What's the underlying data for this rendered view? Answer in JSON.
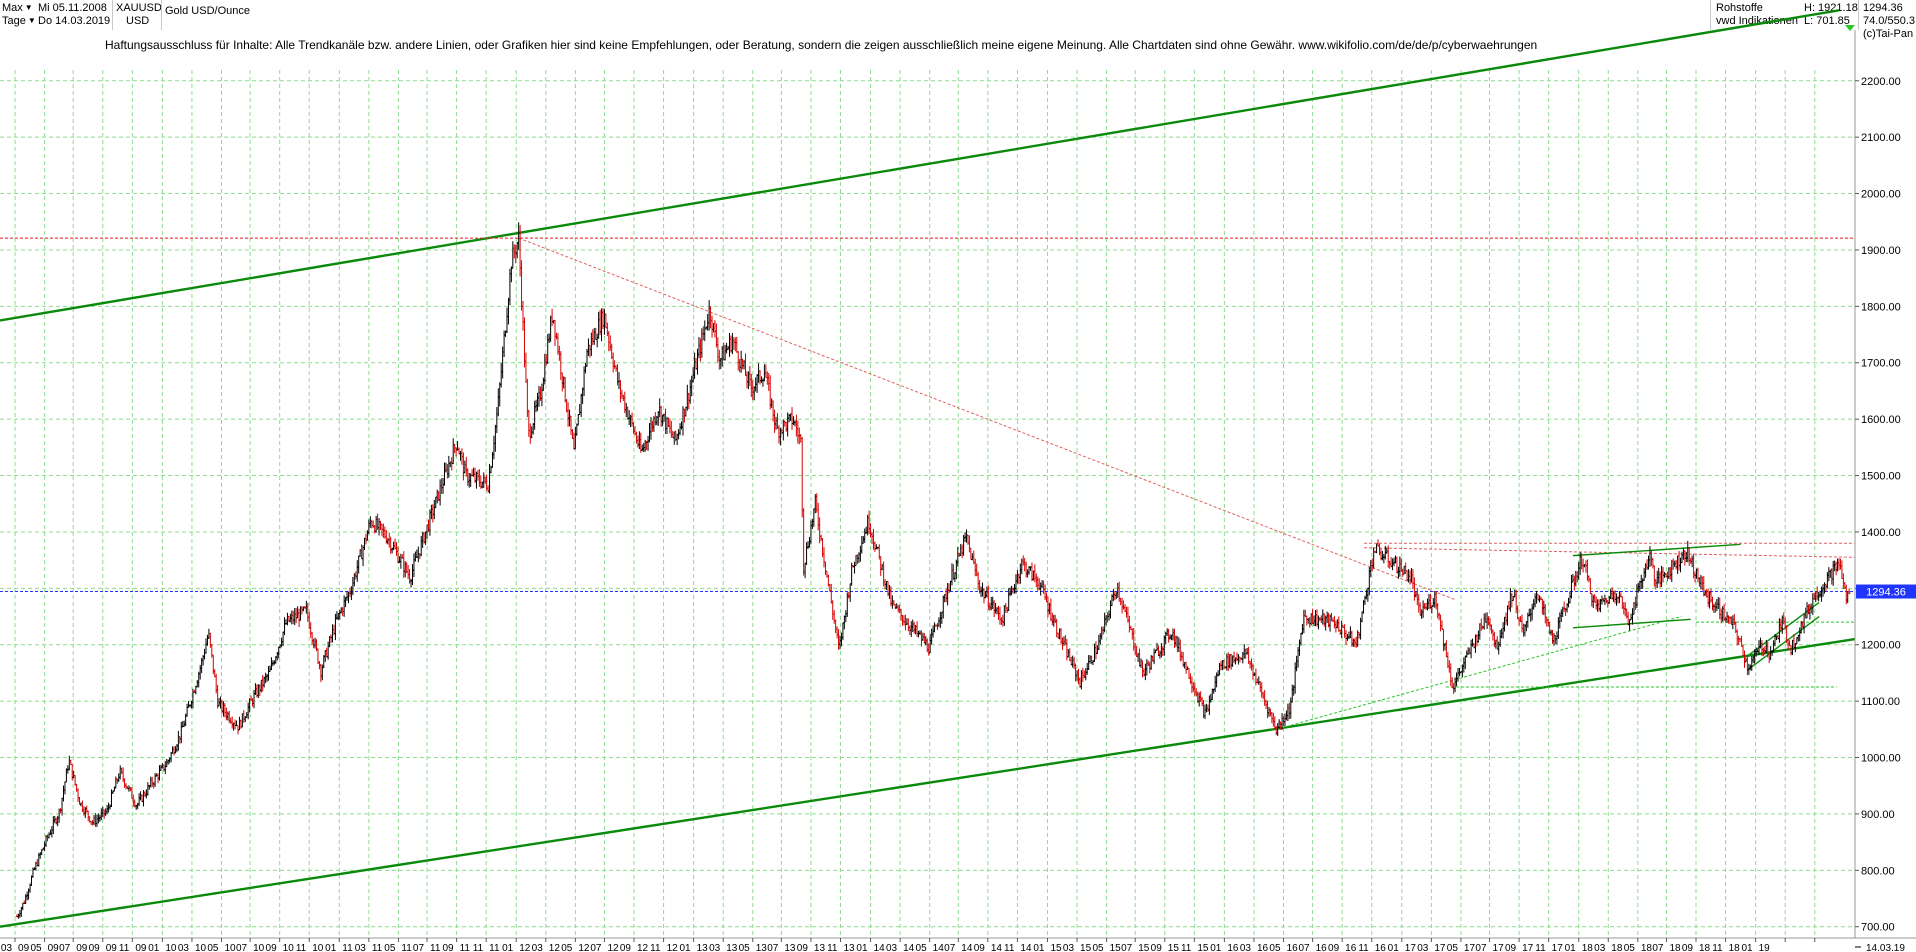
{
  "header": {
    "range_label": "Max",
    "interval_label": "Tage",
    "from_date": "Mi 05.11.2008",
    "to_date": "Do 14.03.2019",
    "symbol": "XAUUSD",
    "currency": "USD",
    "instrument_name": "Gold USD/Ounce",
    "category": "Rohstoffe",
    "source": "vwd Indikationen",
    "high": "H: 1921.18",
    "low": "L: 701.85",
    "last": "1294.36",
    "change": "74.0/550.3",
    "copyright": "(c)Tai-Pan"
  },
  "disclaimer": "Haftungsausschluss für Inhalte: Alle Trendkanäle bzw. andere Linien, oder Grafiken hier sind keine Empfehlungen, oder Beratung, sondern die zeigen ausschließlich meine eigene Meinung. Alle Chartdaten sind ohne Gewähr.  www.wikifolio.com/de/de/p/cyberwaehrungen",
  "chart_data": {
    "type": "ohlc",
    "title": "Gold USD/Ounce",
    "ylim": [
      680,
      2290
    ],
    "y_ticks": [
      700,
      800,
      900,
      1000,
      1100,
      1200,
      1300,
      1400,
      1500,
      1600,
      1700,
      1800,
      1900,
      2000,
      2100,
      2200
    ],
    "y_tick_labels": [
      "700.00",
      "800.00",
      "900.00",
      "1000.00",
      "1100.00",
      "1200.00",
      "1300.00",
      "1400.00",
      "1500.00",
      "1600.00",
      "1700.00",
      "1800.00",
      "1900.00",
      "2000.00",
      "2100.00",
      "2200.00"
    ],
    "x_range": [
      "2008-11-05",
      "2019-03-14"
    ],
    "x_ticks": [
      "2008-11-01",
      "2009-01-01",
      "2009-03-01",
      "2009-05-01",
      "2009-07-01",
      "2009-09-01",
      "2009-11-01",
      "2010-01-01",
      "2010-03-01",
      "2010-05-01",
      "2010-07-01",
      "2010-09-01",
      "2010-11-01",
      "2011-01-01",
      "2011-03-01",
      "2011-05-01",
      "2011-07-01",
      "2011-09-01",
      "2011-11-01",
      "2012-01-01",
      "2012-03-01",
      "2012-05-01",
      "2012-07-01",
      "2012-09-01",
      "2012-11-01",
      "2013-01-01",
      "2013-03-01",
      "2013-05-01",
      "2013-07-01",
      "2013-09-01",
      "2013-11-01",
      "2014-01-01",
      "2014-03-01",
      "2014-05-01",
      "2014-07-01",
      "2014-09-01",
      "2014-11-01",
      "2015-01-01",
      "2015-03-01",
      "2015-05-01",
      "2015-07-01",
      "2015-09-01",
      "2015-11-01",
      "2016-01-01",
      "2016-03-01",
      "2016-05-01",
      "2016-07-01",
      "2016-09-01",
      "2016-11-01",
      "2017-01-01",
      "2017-03-01",
      "2017-05-01",
      "2017-07-01",
      "2017-09-01",
      "2017-11-01",
      "2018-01-01",
      "2018-03-01",
      "2018-05-01",
      "2018-07-01",
      "2018-09-01",
      "2018-11-01",
      "2019-01-01"
    ],
    "x_tick_labels": [
      "03",
      "09",
      "05",
      "09",
      "07",
      "09",
      "09",
      "09",
      "11",
      "09",
      "01",
      "10",
      "03",
      "10",
      "05",
      "10",
      "07",
      "10",
      "09",
      "10",
      "11",
      "10",
      "01",
      "11",
      "03",
      "11",
      "05",
      "11",
      "07",
      "11",
      "09",
      "11",
      "11",
      "11",
      "01",
      "12",
      "03",
      "12",
      "05",
      "12",
      "07",
      "12",
      "09",
      "12",
      "11",
      "12",
      "01",
      "13",
      "03",
      "13",
      "05",
      "13",
      "07",
      "13",
      "09",
      "13",
      "11",
      "13",
      "01",
      "14",
      "03",
      "14",
      "05",
      "14",
      "07",
      "14",
      "09",
      "14",
      "11",
      "14",
      "01",
      "15",
      "03",
      "15",
      "05",
      "15",
      "07",
      "15",
      "09",
      "15",
      "11",
      "15",
      "01",
      "16",
      "03",
      "16",
      "05",
      "16",
      "07",
      "16",
      "09",
      "16",
      "11",
      "16",
      "01",
      "17",
      "03",
      "17",
      "05",
      "17",
      "07",
      "17",
      "09",
      "17",
      "11",
      "17",
      "01",
      "18",
      "03",
      "18",
      "05",
      "18",
      "07",
      "18",
      "09",
      "18",
      "11",
      "18",
      "01",
      "19"
    ],
    "last_date_label": "14.03.19",
    "last_value": 1294.36,
    "last_value_label": "1294.36",
    "grid": true,
    "series": [
      {
        "points": [
          [
            "2008-11-05",
            718
          ],
          [
            "2008-11-20",
            745
          ],
          [
            "2008-12-10",
            800
          ],
          [
            "2009-01-05",
            855
          ],
          [
            "2009-02-01",
            905
          ],
          [
            "2009-02-20",
            995
          ],
          [
            "2009-03-15",
            920
          ],
          [
            "2009-04-10",
            885
          ],
          [
            "2009-05-10",
            905
          ],
          [
            "2009-06-05",
            975
          ],
          [
            "2009-07-10",
            915
          ],
          [
            "2009-08-10",
            955
          ],
          [
            "2009-09-10",
            990
          ],
          [
            "2009-10-10",
            1045
          ],
          [
            "2009-11-20",
            1165
          ],
          [
            "2009-12-05",
            1220
          ],
          [
            "2009-12-25",
            1095
          ],
          [
            "2010-02-05",
            1055
          ],
          [
            "2010-03-10",
            1110
          ],
          [
            "2010-04-10",
            1150
          ],
          [
            "2010-05-15",
            1240
          ],
          [
            "2010-06-25",
            1260
          ],
          [
            "2010-07-25",
            1155
          ],
          [
            "2010-08-25",
            1240
          ],
          [
            "2010-09-25",
            1300
          ],
          [
            "2010-11-05",
            1420
          ],
          [
            "2010-12-10",
            1390
          ],
          [
            "2011-01-25",
            1320
          ],
          [
            "2011-03-10",
            1430
          ],
          [
            "2011-05-01",
            1560
          ],
          [
            "2011-05-20",
            1500
          ],
          [
            "2011-07-05",
            1485
          ],
          [
            "2011-07-25",
            1620
          ],
          [
            "2011-08-22",
            1880
          ],
          [
            "2011-09-06",
            1921
          ],
          [
            "2011-09-26",
            1570
          ],
          [
            "2011-10-20",
            1640
          ],
          [
            "2011-11-15",
            1790
          ],
          [
            "2011-12-29",
            1540
          ],
          [
            "2012-01-25",
            1720
          ],
          [
            "2012-02-29",
            1785
          ],
          [
            "2012-03-30",
            1660
          ],
          [
            "2012-05-16",
            1540
          ],
          [
            "2012-06-20",
            1620
          ],
          [
            "2012-07-25",
            1560
          ],
          [
            "2012-08-20",
            1640
          ],
          [
            "2012-10-04",
            1795
          ],
          [
            "2012-10-25",
            1705
          ],
          [
            "2012-11-20",
            1740
          ],
          [
            "2012-12-28",
            1655
          ],
          [
            "2013-01-25",
            1685
          ],
          [
            "2013-02-20",
            1580
          ],
          [
            "2013-03-25",
            1600
          ],
          [
            "2013-04-10",
            1560
          ],
          [
            "2013-04-16",
            1340
          ],
          [
            "2013-05-10",
            1450
          ],
          [
            "2013-06-28",
            1190
          ],
          [
            "2013-07-25",
            1335
          ],
          [
            "2013-08-28",
            1420
          ],
          [
            "2013-10-15",
            1270
          ],
          [
            "2013-12-31",
            1195
          ],
          [
            "2014-02-15",
            1320
          ],
          [
            "2014-03-17",
            1390
          ],
          [
            "2014-04-15",
            1300
          ],
          [
            "2014-05-30",
            1245
          ],
          [
            "2014-07-10",
            1345
          ],
          [
            "2014-08-15",
            1310
          ],
          [
            "2014-10-01",
            1205
          ],
          [
            "2014-11-07",
            1135
          ],
          [
            "2014-12-15",
            1200
          ],
          [
            "2015-01-22",
            1305
          ],
          [
            "2015-03-17",
            1150
          ],
          [
            "2015-05-15",
            1225
          ],
          [
            "2015-07-24",
            1075
          ],
          [
            "2015-08-24",
            1165
          ],
          [
            "2015-10-15",
            1185
          ],
          [
            "2015-12-17",
            1050
          ],
          [
            "2016-01-15",
            1090
          ],
          [
            "2016-02-11",
            1250
          ],
          [
            "2016-04-15",
            1240
          ],
          [
            "2016-05-30",
            1200
          ],
          [
            "2016-07-06",
            1370
          ],
          [
            "2016-08-15",
            1345
          ],
          [
            "2016-09-20",
            1320
          ],
          [
            "2016-10-07",
            1255
          ],
          [
            "2016-11-09",
            1285
          ],
          [
            "2016-12-15",
            1125
          ],
          [
            "2017-02-25",
            1255
          ],
          [
            "2017-03-15",
            1195
          ],
          [
            "2017-04-18",
            1295
          ],
          [
            "2017-05-09",
            1215
          ],
          [
            "2017-06-06",
            1295
          ],
          [
            "2017-07-10",
            1205
          ],
          [
            "2017-09-08",
            1355
          ],
          [
            "2017-10-05",
            1265
          ],
          [
            "2017-11-20",
            1295
          ],
          [
            "2017-12-12",
            1240
          ],
          [
            "2018-01-25",
            1360
          ],
          [
            "2018-02-08",
            1310
          ],
          [
            "2018-04-11",
            1365
          ],
          [
            "2018-05-20",
            1290
          ],
          [
            "2018-07-20",
            1230
          ],
          [
            "2018-08-16",
            1160
          ],
          [
            "2018-09-15",
            1200
          ],
          [
            "2018-10-01",
            1185
          ],
          [
            "2018-10-26",
            1240
          ],
          [
            "2018-11-13",
            1195
          ],
          [
            "2018-12-31",
            1285
          ],
          [
            "2019-02-20",
            1345
          ],
          [
            "2019-03-07",
            1283
          ],
          [
            "2019-03-14",
            1294.36
          ]
        ]
      }
    ],
    "trendlines": [
      {
        "kind": "channel-upper",
        "color": "#0a8a0a",
        "style": "solid",
        "from": [
          "2008-10-01",
          1775
        ],
        "to": [
          "2019-02-20",
          2325
        ]
      },
      {
        "kind": "channel-lower",
        "color": "#0a8a0a",
        "style": "solid",
        "from": [
          "2008-10-01",
          700
        ],
        "to": [
          "2019-03-25",
          1210
        ]
      },
      {
        "kind": "resistance",
        "color": "#e31b1b",
        "style": "dotted",
        "from": [
          "2008-10-01",
          1921
        ],
        "to": [
          "2019-03-25",
          1921
        ]
      },
      {
        "kind": "last-price",
        "color": "#1f35ff",
        "style": "dotted",
        "from": [
          "2008-10-01",
          1294.36
        ],
        "to": [
          "2019-03-25",
          1294.36
        ]
      },
      {
        "kind": "downtrend",
        "color": "#e36060",
        "style": "dotted",
        "from": [
          "2011-09-06",
          1921
        ],
        "to": [
          "2016-12-20",
          1280
        ]
      },
      {
        "kind": "level",
        "color": "#e36060",
        "style": "dotted",
        "from": [
          "2016-06-15",
          1380
        ],
        "to": [
          "2019-03-25",
          1380
        ]
      },
      {
        "kind": "level",
        "color": "#e36060",
        "style": "dotted",
        "from": [
          "2016-06-15",
          1372
        ],
        "to": [
          "2019-03-25",
          1355
        ]
      },
      {
        "kind": "uptrend",
        "color": "#2ac62a",
        "style": "dotted",
        "from": [
          "2015-12-17",
          1050
        ],
        "to": [
          "2018-04-01",
          1250
        ]
      },
      {
        "kind": "support",
        "color": "#2ac62a",
        "style": "dotted",
        "from": [
          "2016-12-01",
          1125
        ],
        "to": [
          "2019-02-15",
          1125
        ]
      },
      {
        "kind": "support",
        "color": "#2ac62a",
        "style": "dotted",
        "from": [
          "2018-05-01",
          1240
        ],
        "to": [
          "2019-03-25",
          1240
        ]
      },
      {
        "kind": "upper-trend",
        "color": "#0a8a0a",
        "style": "solid",
        "from": [
          "2017-08-20",
          1358
        ],
        "to": [
          "2018-08-01",
          1378
        ]
      },
      {
        "kind": "lower-trend",
        "color": "#0a8a0a",
        "style": "solid",
        "from": [
          "2017-08-20",
          1230
        ],
        "to": [
          "2018-04-20",
          1245
        ]
      },
      {
        "kind": "wedge-lower",
        "color": "#0a8a0a",
        "style": "solid",
        "from": [
          "2018-08-15",
          1155
        ],
        "to": [
          "2019-01-10",
          1250
        ]
      },
      {
        "kind": "wedge-upper",
        "color": "#0a8a0a",
        "style": "solid",
        "from": [
          "2018-08-15",
          1180
        ],
        "to": [
          "2019-01-10",
          1275
        ]
      }
    ],
    "colors": {
      "up": "#000000",
      "down": "#d40000",
      "grid": "#8fdc8f"
    }
  }
}
